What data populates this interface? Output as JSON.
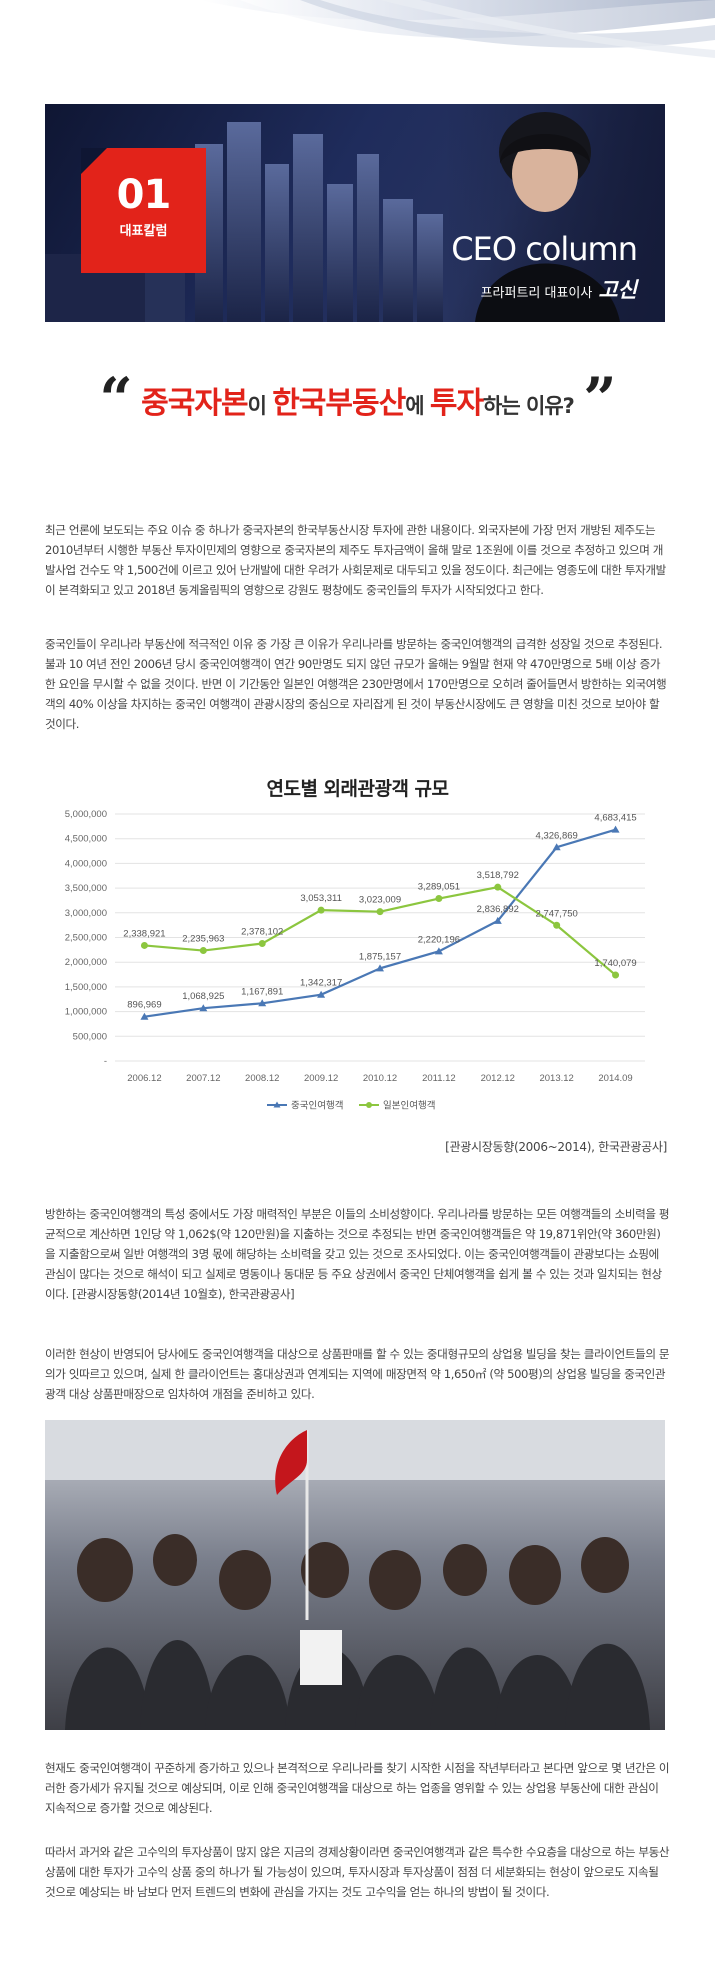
{
  "banner": {
    "badge_number": "01",
    "badge_label": "대표칼럼",
    "column_title": "CEO column",
    "author_role": "프라퍼트리 대표이사",
    "author_name": "고신"
  },
  "headline": {
    "open_quote": "“",
    "part1": "중국자본",
    "part2": "이 ",
    "part3": "한국부동산",
    "part4": "에 ",
    "part5": "투자",
    "part6": "하는 이유?",
    "close_quote": "”"
  },
  "paragraphs": {
    "p1": "최근 언론에 보도되는 주요 이슈 중 하나가 중국자본의 한국부동산시장 투자에 관한 내용이다. 외국자본에 가장 먼저 개방된 제주도는 2010년부터 시행한 부동산 투자이민제의 영향으로 중국자본의 제주도 투자금액이 올해 말로 1조원에 이를 것으로 추정하고 있으며 개발사업 건수도 약 1,500건에 이르고 있어 난개발에 대한 우려가 사회문제로 대두되고 있을 정도이다. 최근에는 영종도에 대한 투자개발이 본격화되고 있고 2018년 동계올림픽의 영향으로 강원도 평창에도 중국인들의 투자가 시작되었다고 한다.",
    "p2": "중국인들이 우리나라 부동산에 적극적인 이유 중 가장 큰 이유가 우리나라를 방문하는 중국인여행객의 급격한 성장일 것으로 추정된다. 불과 10 여년 전인 2006년 당시 중국인여행객이 연간 90만명도 되지 않던 규모가 올해는 9월말 현재 약 470만명으로 5배 이상 증가한 요인을 무시할 수 없을 것이다. 반면 이 기간동안 일본인 여행객은 230만명에서 170만명으로 오히려 줄어들면서 방한하는 외국여행객의 40% 이상을 차지하는 중국인 여행객이 관광시장의 중심으로 자리잡게 된 것이 부동산시장에도 큰 영향을 미친 것으로 보아야 할 것이다.",
    "p3": "방한하는 중국인여행객의 특성 중에서도 가장 매력적인 부분은 이들의 소비성향이다. 우리나라를 방문하는 모든 여행객들의 소비력을 평균적으로 계산하면 1인당 약 1,062$(약 120만원)을 지출하는 것으로 추정되는 반면 중국인여행객들은 약 19,871위안(약 360만원)을 지출함으로써 일반 여행객의 3명 몫에 해당하는 소비력을 갖고 있는 것으로 조사되었다. 이는 중국인여행객들이 관광보다는 쇼핑에 관심이 많다는 것으로 해석이 되고 실제로 명동이나 동대문 등 주요 상권에서 중국인 단체여행객을 쉽게 볼 수 있는 것과 일치되는 현상이다. [관광시장동향(2014년 10월호), 한국관광공사]",
    "p4": "이러한 현상이 반영되어 당사에도 중국인여행객을 대상으로 상품판매를 할 수 있는 중대형규모의 상업용 빌딩을 찾는 클라이언트들의 문의가 잇따르고 있으며, 실제 한 클라이언트는 홍대상권과 연계되는 지역에 매장면적 약 1,650㎡ (약 500평)의 상업용 빌딩을 중국인관광객 대상 상품판매장으로 임차하여 개점을 준비하고 있다.",
    "p5": "현재도 중국인여행객이 꾸준하게 증가하고 있으나 본격적으로 우리나라를 찾기 시작한 시점을 작년부터라고 본다면 앞으로 몇 년간은 이러한 증가세가 유지될 것으로 예상되며, 이로 인해 중국인여행객을 대상으로 하는 업종을 영위할 수 있는 상업용 부동산에 대한 관심이 지속적으로 증가할 것으로 예상된다.",
    "p6": "따라서 과거와 같은 고수익의 투자상품이 많지 않은 지금의 경제상황이라면 중국인여행객과 같은 특수한 수요층을 대상으로 하는 부동산상품에 대한 투자가 고수익 상품 중의 하나가 될 가능성이 있으며, 투자시장과 투자상품이 점점 더 세분화되는 현상이 앞으로도 지속될 것으로 예상되는 바 남보다 먼저 트렌드의 변화에 관심을 가지는 것도 고수익을 얻는 하나의 방법이 될 것이다."
  },
  "source_note": "[관광시장동향(2006~2014), 한국관광공사]",
  "chart_data": {
    "type": "line",
    "title": "연도별 외래관광객 규모",
    "categories": [
      "2006.12",
      "2007.12",
      "2008.12",
      "2009.12",
      "2010.12",
      "2011.12",
      "2012.12",
      "2013.12",
      "2014.09"
    ],
    "yticks": [
      "-",
      "500,000",
      "1,000,000",
      "1,500,000",
      "2,000,000",
      "2,500,000",
      "3,000,000",
      "3,500,000",
      "4,000,000",
      "4,500,000",
      "5,000,000"
    ],
    "ylim": [
      0,
      5000000
    ],
    "legend_position": "bottom",
    "series": [
      {
        "name": "중국인여행객",
        "color": "#4a78b5",
        "values": [
          896969,
          1068925,
          1167891,
          1342317,
          1875157,
          2220196,
          2836892,
          4326869,
          4683415
        ],
        "labels": [
          "896,969",
          "1,068,925",
          "1,167,891",
          "1,342,317",
          "1,875,157",
          "2,220,196",
          "2,836,892",
          "4,326,869",
          "4,683,415"
        ]
      },
      {
        "name": "일본인여행객",
        "color": "#8cc63f",
        "values": [
          2338921,
          2235963,
          2378102,
          3053311,
          3023009,
          3289051,
          3518792,
          2747750,
          1740079
        ],
        "labels": [
          "2,338,921",
          "2,235,963",
          "2,378,102",
          "3,053,311",
          "3,023,009",
          "3,289,051",
          "3,518,792",
          "2,747,750",
          "1,740,079"
        ]
      }
    ]
  }
}
